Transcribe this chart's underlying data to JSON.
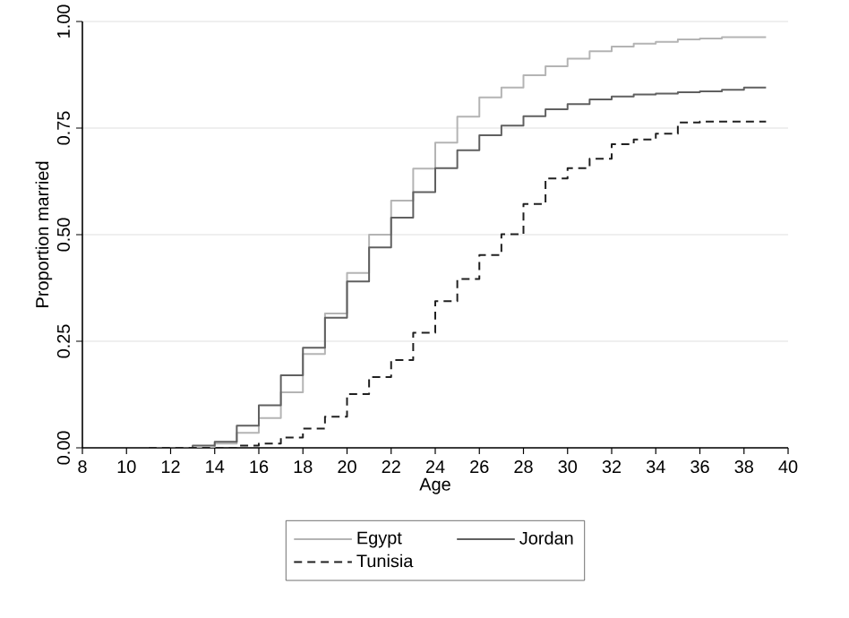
{
  "chart_data": {
    "type": "step",
    "xlabel": "Age",
    "ylabel": "Proportion married",
    "xlim": [
      8,
      40
    ],
    "ylim": [
      0,
      1
    ],
    "xticks": [
      8,
      10,
      12,
      14,
      16,
      18,
      20,
      22,
      24,
      26,
      28,
      30,
      32,
      34,
      36,
      38,
      40
    ],
    "yticks": [
      {
        "value": 0,
        "label": "0.00"
      },
      {
        "value": 0.25,
        "label": "0.25"
      },
      {
        "value": 0.5,
        "label": "0.50"
      },
      {
        "value": 0.75,
        "label": "0.75"
      },
      {
        "value": 1,
        "label": "1.00"
      }
    ],
    "grid": "y",
    "legend": "bottom",
    "series": [
      {
        "name": "Egypt",
        "color": "#b4b4b4",
        "line_style": "solid",
        "x": [
          11,
          14,
          15,
          16,
          17,
          18,
          19,
          20,
          21,
          22,
          23,
          24,
          25,
          26,
          27,
          28,
          29,
          30,
          31,
          32,
          33,
          34,
          35,
          36,
          37,
          39
        ],
        "values": [
          0,
          0.01,
          0.035,
          0.07,
          0.13,
          0.22,
          0.315,
          0.41,
          0.5,
          0.58,
          0.655,
          0.716,
          0.777,
          0.822,
          0.845,
          0.874,
          0.895,
          0.913,
          0.93,
          0.941,
          0.948,
          0.952,
          0.958,
          0.96,
          0.963,
          0.963
        ]
      },
      {
        "name": "Jordan",
        "color": "#606060",
        "line_style": "solid",
        "x": [
          11,
          13,
          14,
          15,
          16,
          17,
          18,
          19,
          20,
          21,
          22,
          23,
          24,
          25,
          26,
          27,
          28,
          29,
          30,
          31,
          32,
          33,
          34,
          35,
          36,
          37,
          38,
          39
        ],
        "values": [
          0,
          0.005,
          0.014,
          0.052,
          0.1,
          0.17,
          0.235,
          0.305,
          0.39,
          0.47,
          0.54,
          0.6,
          0.656,
          0.698,
          0.733,
          0.756,
          0.778,
          0.794,
          0.806,
          0.817,
          0.824,
          0.829,
          0.831,
          0.834,
          0.836,
          0.84,
          0.845,
          0.845
        ]
      },
      {
        "name": "Tunisia",
        "color": "#202020",
        "line_style": "dashed",
        "x": [
          11,
          15,
          16,
          17,
          18,
          19,
          20,
          21,
          22,
          23,
          24,
          25,
          26,
          27,
          28,
          29,
          30,
          31,
          32,
          33,
          34,
          35,
          36,
          39
        ],
        "values": [
          0,
          0.005,
          0.01,
          0.024,
          0.045,
          0.073,
          0.126,
          0.166,
          0.206,
          0.27,
          0.344,
          0.396,
          0.452,
          0.501,
          0.572,
          0.632,
          0.656,
          0.678,
          0.712,
          0.723,
          0.737,
          0.763,
          0.765,
          0.765
        ]
      }
    ]
  }
}
